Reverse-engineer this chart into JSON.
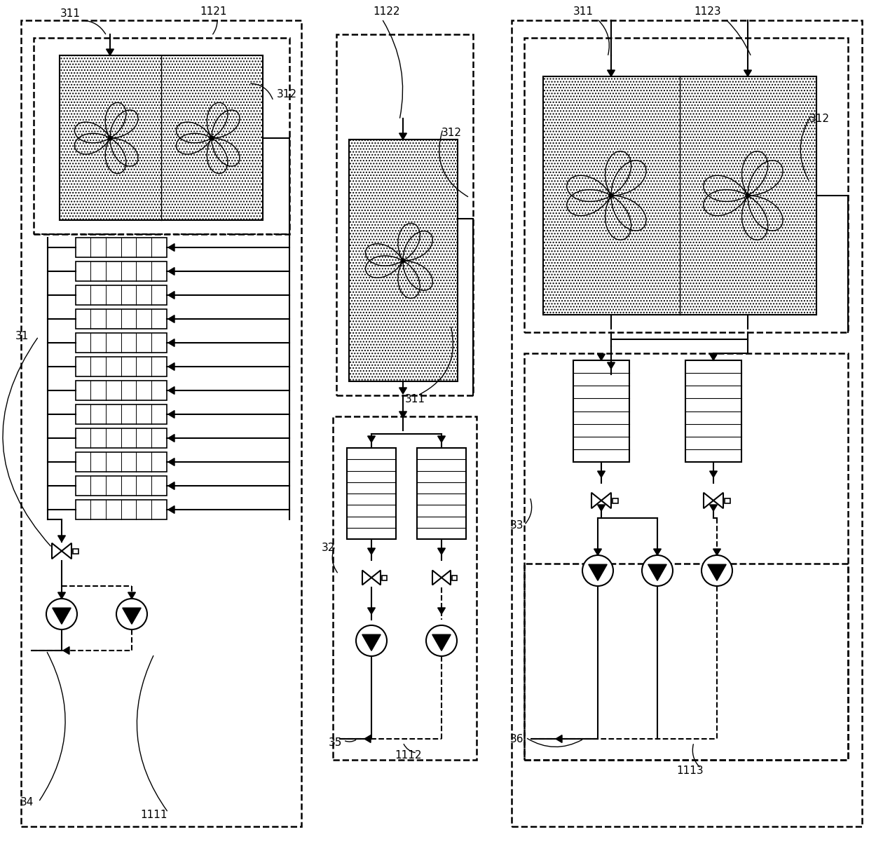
{
  "bg_color": "#ffffff",
  "labels": {
    "311_1": "311",
    "1121": "1121",
    "312_1": "312",
    "311_2": "311",
    "1122": "1122",
    "312_2": "312",
    "311_3": "311",
    "1123": "1123",
    "312_3": "312",
    "31": "31",
    "32": "32",
    "33": "33",
    "34": "34",
    "35": "35",
    "36": "36",
    "1111": "1111",
    "1112": "1112",
    "1113": "1113"
  }
}
